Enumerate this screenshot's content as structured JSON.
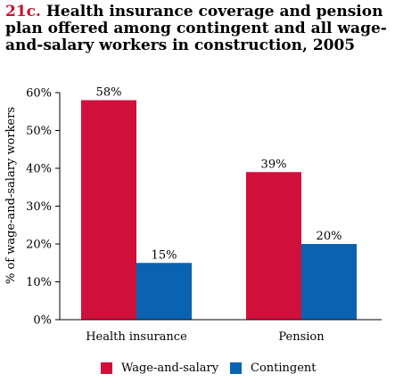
{
  "title": {
    "number": "21c.",
    "text": "Health insurance coverage and pension plan offered among contingent and all wage-and-salary workers in construction, 2005"
  },
  "chart_data": {
    "type": "bar",
    "categories": [
      "Health insurance",
      "Pension"
    ],
    "series": [
      {
        "name": "Wage-and-salary",
        "values": [
          58,
          39
        ],
        "labels": [
          "58%",
          "39%"
        ],
        "color": "#d0103a"
      },
      {
        "name": "Contingent",
        "values": [
          15,
          20
        ],
        "labels": [
          "15%",
          "20%"
        ],
        "color": "#0a63b0"
      }
    ],
    "ylabel": "% of wage-and-salary workers",
    "ylim": [
      0,
      60
    ],
    "yticks": [
      0,
      10,
      20,
      30,
      40,
      50,
      60
    ],
    "ytick_labels": [
      "0%",
      "10%",
      "20%",
      "30%",
      "40%",
      "50%",
      "60%"
    ],
    "legend_placement": "bottom"
  }
}
